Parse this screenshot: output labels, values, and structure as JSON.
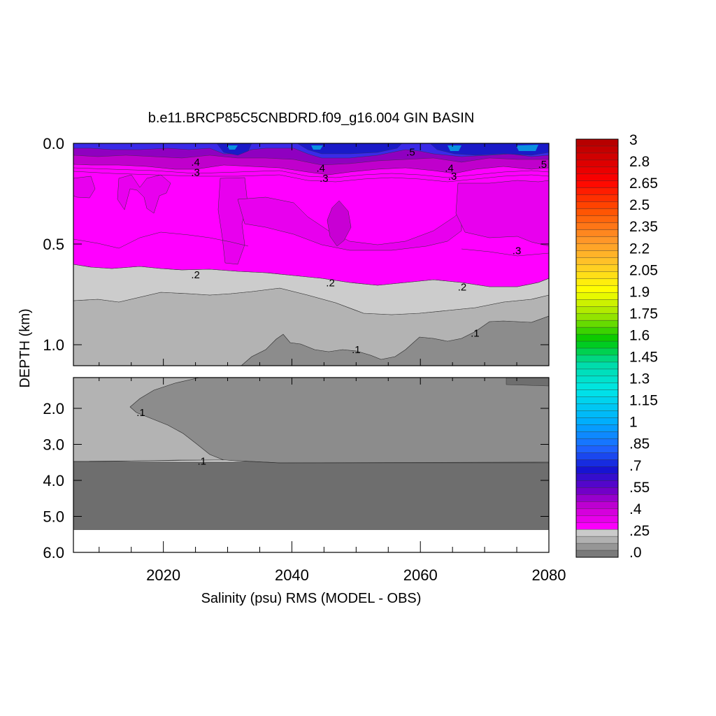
{
  "chart_data": {
    "type": "heatmap",
    "title": "b.e11.BRCP85C5CNBDRD.f09_g16.004 GIN BASIN",
    "xlabel": "Salinity (psu) RMS (MODEL - OBS)",
    "ylabel": "DEPTH (km)",
    "xlim": [
      2006,
      2080
    ],
    "x_ticks": [
      "2020",
      "2040",
      "2060",
      "2080"
    ],
    "y_ticks_upper": [
      "0.0",
      "0.5",
      "1.0"
    ],
    "y_ticks_lower": [
      "2.0",
      "3.0",
      "4.0",
      "5.0",
      "6.0"
    ],
    "upper_panel_depth_km": [
      0.0,
      1.1
    ],
    "lower_panel_depth_km": [
      1.1,
      6.0
    ],
    "colorbar_labels": [
      "3",
      "2.8",
      "2.65",
      "2.5",
      "2.35",
      "2.2",
      "2.05",
      "1.9",
      "1.75",
      "1.6",
      "1.45",
      "1.3",
      "1.15",
      "1",
      ".85",
      ".7",
      ".55",
      ".4",
      ".25",
      ".0"
    ],
    "contour_labels": [
      {
        "text": ".4",
        "year": 2025,
        "depth_km": 0.09
      },
      {
        "text": ".3",
        "year": 2025,
        "depth_km": 0.14
      },
      {
        "text": ".4",
        "year": 2044.5,
        "depth_km": 0.12
      },
      {
        "text": ".3",
        "year": 2045,
        "depth_km": 0.17
      },
      {
        "text": ".5",
        "year": 2058.5,
        "depth_km": 0.04
      },
      {
        "text": ".4",
        "year": 2064.5,
        "depth_km": 0.12
      },
      {
        "text": ".3",
        "year": 2065,
        "depth_km": 0.16
      },
      {
        "text": ".5",
        "year": 2079,
        "depth_km": 0.1
      },
      {
        "text": ".3",
        "year": 2075,
        "depth_km": 0.53
      },
      {
        "text": ".2",
        "year": 2025,
        "depth_km": 0.65
      },
      {
        "text": ".2",
        "year": 2046,
        "depth_km": 0.69
      },
      {
        "text": ".2",
        "year": 2066.5,
        "depth_km": 0.71
      },
      {
        "text": ".1",
        "year": 2068.5,
        "depth_km": 0.94
      },
      {
        "text": ".1",
        "year": 2050,
        "depth_km": 1.02
      },
      {
        "text": ".1",
        "year": 2016.5,
        "depth_km": 2.1
      },
      {
        "text": ".1",
        "year": 2026,
        "depth_km": 3.45
      }
    ],
    "colors": {
      "magenta": "#ff00ff",
      "magenta_dark": "#e000e8",
      "purple": "#b000c8",
      "blue": "#3a2ae8",
      "blue_dark": "#1818c8",
      "light_gray": "#cccccc",
      "mid_gray": "#b3b3b3",
      "gray": "#999999",
      "dark_gray": "#8c8c8c",
      "darker_gray": "#6e6e6e"
    }
  }
}
